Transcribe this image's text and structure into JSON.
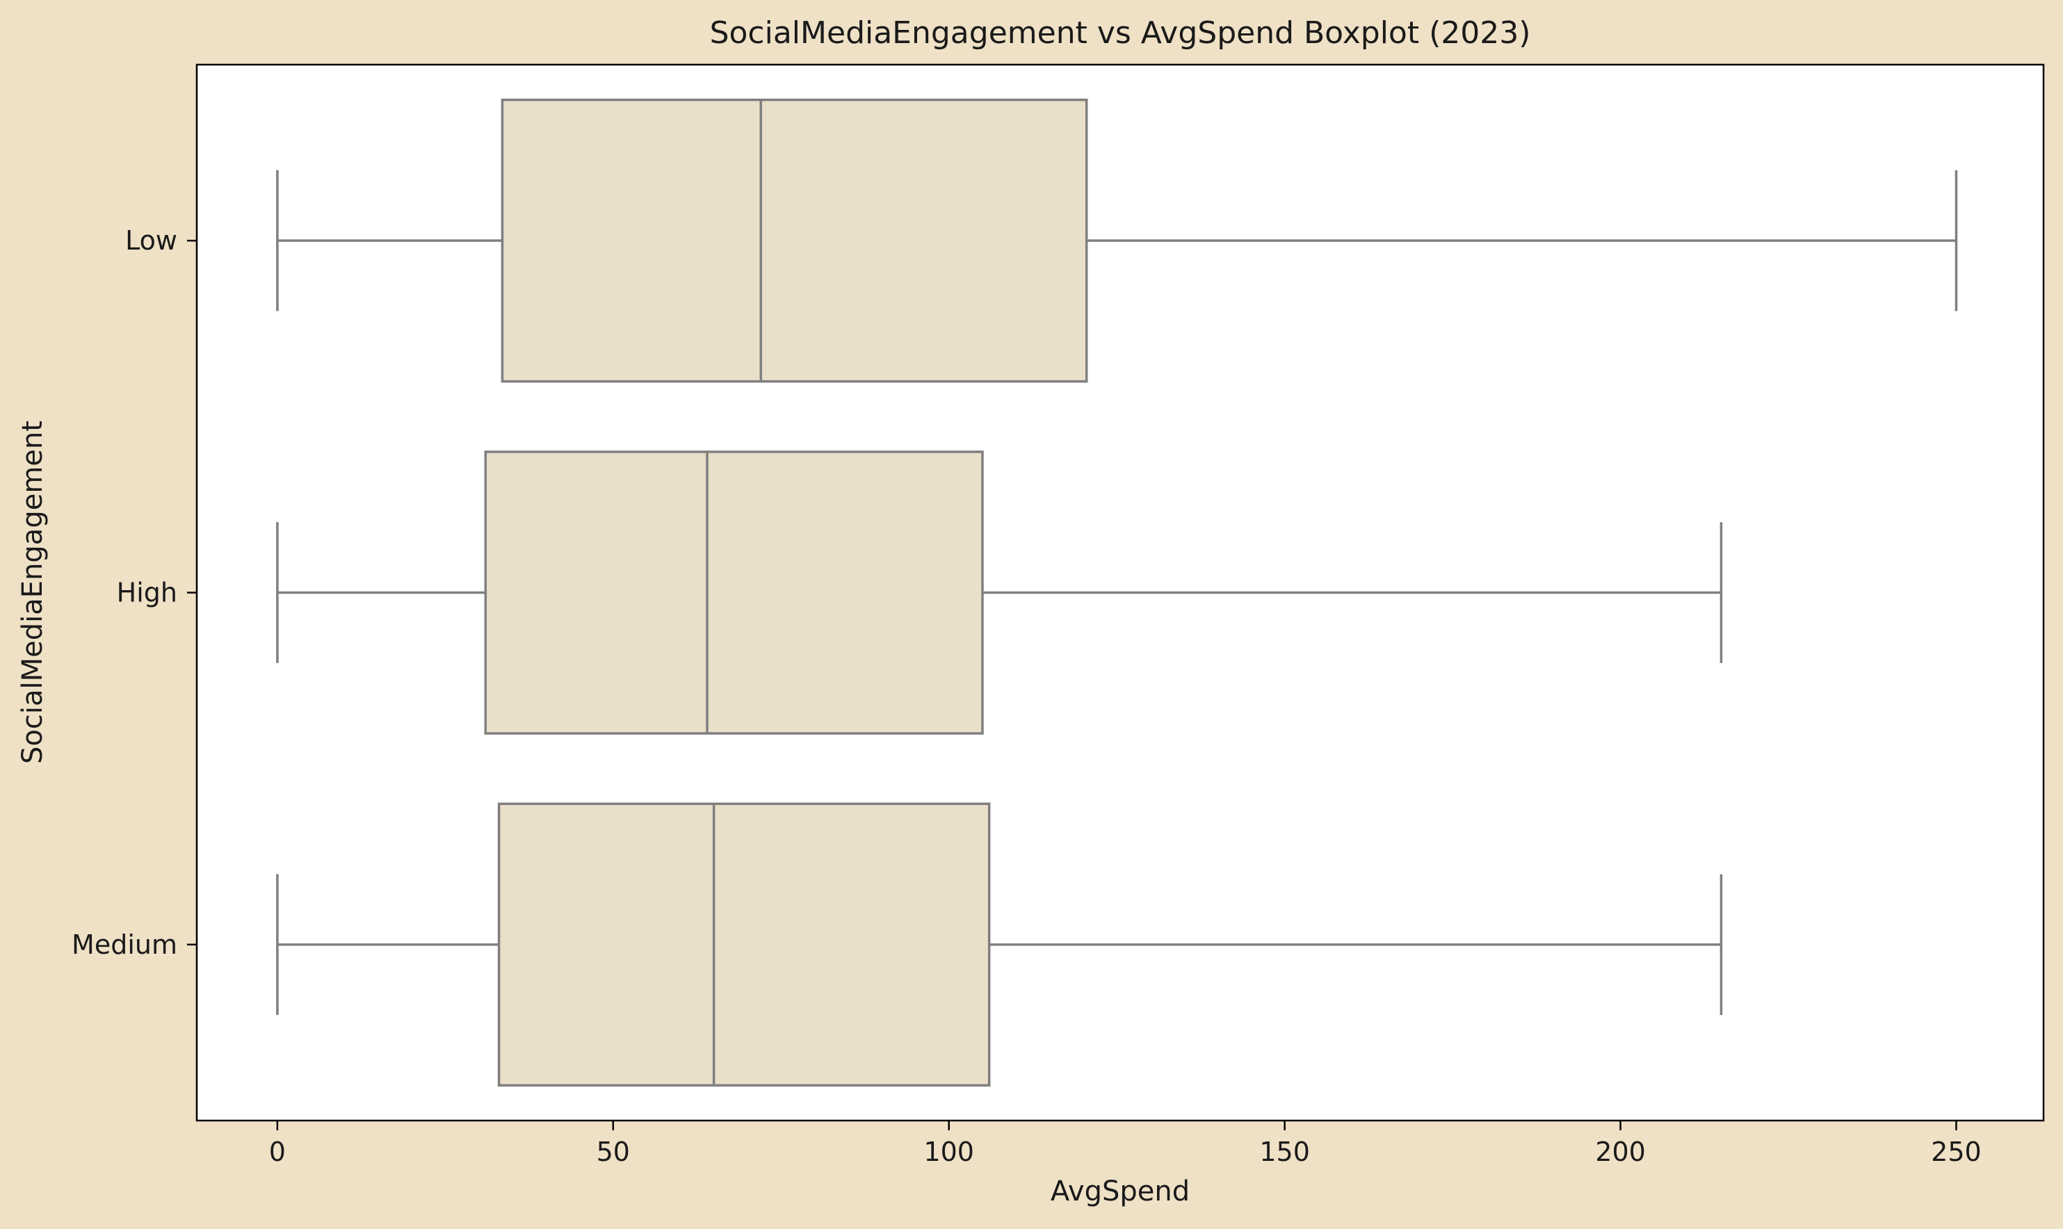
{
  "chart_data": {
    "type": "boxplot",
    "orientation": "horizontal",
    "title": "SocialMediaEngagement vs AvgSpend Boxplot (2023)",
    "xlabel": "AvgSpend",
    "ylabel": "SocialMediaEngagement",
    "xlim": [
      -12,
      263
    ],
    "xticks": [
      0,
      50,
      100,
      150,
      200,
      250
    ],
    "categories": [
      "Low",
      "High",
      "Medium"
    ],
    "boxes": [
      {
        "category": "Low",
        "whisker_low": 0,
        "q1": 33.5,
        "median": 72,
        "q3": 120.5,
        "whisker_high": 250
      },
      {
        "category": "High",
        "whisker_low": 0,
        "q1": 31,
        "median": 64,
        "q3": 105,
        "whisker_high": 215
      },
      {
        "category": "Medium",
        "whisker_low": 0,
        "q1": 33,
        "median": 65,
        "q3": 106,
        "whisker_high": 215
      }
    ],
    "grid": false,
    "legend": "none",
    "colors": {
      "figure_background": "#efe1c6",
      "plot_background": "#ffffff",
      "box_fill": "#eadfc9",
      "box_stroke": "#7f7f7f",
      "axis": "#000000",
      "text": "#1a1a1a"
    }
  }
}
